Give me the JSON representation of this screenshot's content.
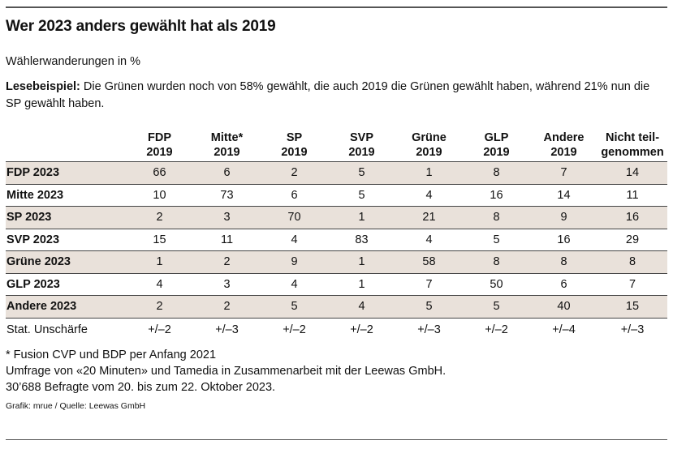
{
  "chart_data": {
    "type": "table",
    "title": "Wer 2023 anders gewählt hat als 2019",
    "subtitle": "Wählerwanderungen in %",
    "reading_example": {
      "lead": "Lesebeispiel:",
      "text": "Die Grünen wurden noch von 58% gewählt, die auch 2019 die Grünen gewählt haben, während 21% nun die SP gewählt haben."
    },
    "columns": [
      {
        "line1": "FDP",
        "line2": "2019"
      },
      {
        "line1": "Mitte*",
        "line2": "2019"
      },
      {
        "line1": "SP",
        "line2": "2019"
      },
      {
        "line1": "SVP",
        "line2": "2019"
      },
      {
        "line1": "Grüne",
        "line2": "2019"
      },
      {
        "line1": "GLP",
        "line2": "2019"
      },
      {
        "line1": "Andere",
        "line2": "2019"
      },
      {
        "line1": "Nicht teil-",
        "line2": "genommen"
      }
    ],
    "rows": [
      {
        "label": "FDP 2023",
        "values": [
          66,
          6,
          2,
          5,
          1,
          8,
          7,
          14
        ]
      },
      {
        "label": "Mitte 2023",
        "values": [
          10,
          73,
          6,
          5,
          4,
          16,
          14,
          11
        ]
      },
      {
        "label": "SP 2023",
        "values": [
          2,
          3,
          70,
          1,
          21,
          8,
          9,
          16
        ]
      },
      {
        "label": "SVP 2023",
        "values": [
          15,
          11,
          4,
          83,
          4,
          5,
          16,
          29
        ]
      },
      {
        "label": "Grüne 2023",
        "values": [
          1,
          2,
          9,
          1,
          58,
          8,
          8,
          8
        ]
      },
      {
        "label": "GLP 2023",
        "values": [
          4,
          3,
          4,
          1,
          7,
          50,
          6,
          7
        ]
      },
      {
        "label": "Andere 2023",
        "values": [
          2,
          2,
          5,
          4,
          5,
          5,
          40,
          15
        ]
      }
    ],
    "stat_row": {
      "label": "Stat. Unschärfe",
      "values": [
        "+/–2",
        "+/–3",
        "+/–2",
        "+/–2",
        "+/–3",
        "+/–2",
        "+/–4",
        "+/–3"
      ]
    },
    "shading_color": "#e9e1da",
    "footnotes": [
      "* Fusion CVP und BDP per Anfang 2021",
      "Umfrage von «20 Minuten» und Tamedia in Zusammenarbeit mit der Leewas GmbH.",
      "30’688 Befragte vom 20. bis zum 22. Oktober 2023."
    ],
    "credit": "Grafik: mrue / Quelle: Leewas GmbH"
  }
}
